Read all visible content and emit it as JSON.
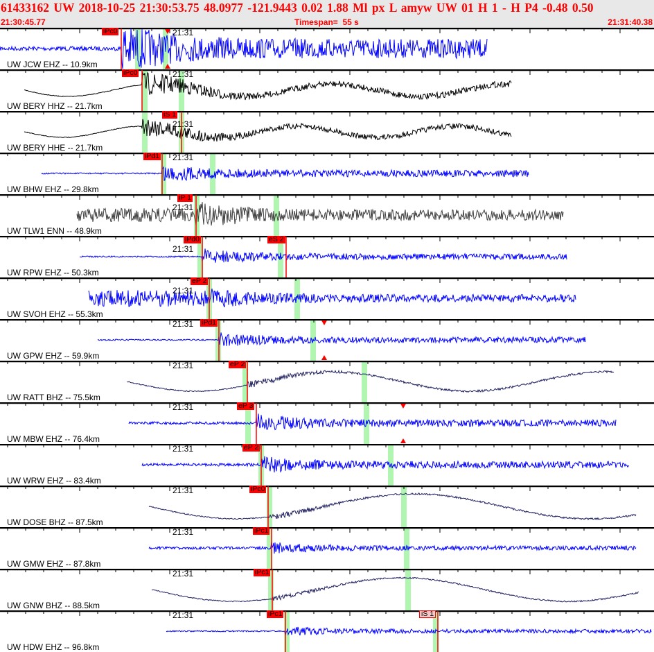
{
  "header": {
    "event_line": "61433162  UW  2018-10-25  21:30:53.75    48.0977  -121.9443    0.02   1.88  Ml   px   L  amyw      UW  01   H    1   -    H  P4    -0.48   0.50",
    "start_time": "21:30:45.77",
    "timespan": "Timespan=  55 s",
    "end_time": "21:31:40.38"
  },
  "time_mark": "21:31",
  "colors": {
    "pick": "#ff0000",
    "pick_window": "#b0f5b0",
    "blue_trace": "#0000ff",
    "black_trace": "#000000",
    "gray_trace": "#404040",
    "navy_trace": "#202060",
    "header_bg": "#e8e8e8",
    "header_text": "#ff0000"
  },
  "traces": [
    {
      "label": "UW JCW EHZ -- 10.9km",
      "picks": [
        "iPc0"
      ]
    },
    {
      "label": "UW BERY HHZ -- 21.7km",
      "picks": [
        "iPc0"
      ]
    },
    {
      "label": "UW BERY HHE -- 21.7km",
      "picks": [
        "iS 1"
      ]
    },
    {
      "label": "UW BHW EHZ -- 29.8km",
      "picks": [
        "iPd1"
      ]
    },
    {
      "label": "UW TLW1 ENN -- 48.9km",
      "picks": [
        "iP 1"
      ]
    },
    {
      "label": "UW RPW EHZ -- 50.3km",
      "picks": [
        "iPd0",
        "eS 2"
      ]
    },
    {
      "label": "UW SVOH EHZ -- 55.3km",
      "picks": [
        "eP 2"
      ]
    },
    {
      "label": "UW GPW EHZ -- 59.9km",
      "picks": [
        "iPd1"
      ]
    },
    {
      "label": "UW RATT BHZ -- 75.5km",
      "picks": [
        "eP 2"
      ]
    },
    {
      "label": "UW MBW EHZ -- 76.4km",
      "picks": [
        "eP 3"
      ]
    },
    {
      "label": "UW WRW EHZ -- 83.4km",
      "picks": [
        "eP 2"
      ]
    },
    {
      "label": "UW DOSE BHZ -- 87.5km",
      "picks": [
        "iPc0"
      ]
    },
    {
      "label": "UW GMW EHZ -- 87.8km",
      "picks": [
        "iPc1"
      ]
    },
    {
      "label": "UW GNW BHZ -- 88.5km",
      "picks": [
        "iPc1"
      ]
    },
    {
      "label": "UW HDW EHZ -- 96.8km",
      "picks": [
        "iPc1",
        "iS 1"
      ]
    }
  ]
}
